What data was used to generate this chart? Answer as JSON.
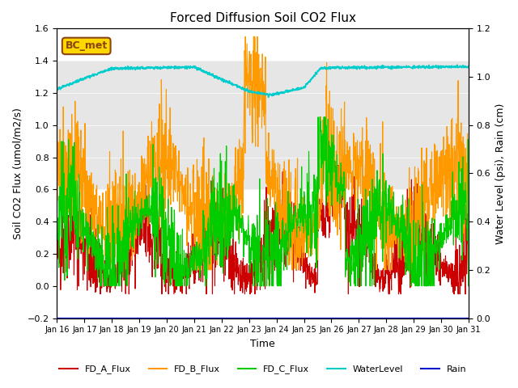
{
  "title": "Forced Diffusion Soil CO2 Flux",
  "xlabel": "Time",
  "ylabel_left": "Soil CO2 Flux (umol/m2/s)",
  "ylabel_right": "Water Level (psi), Rain (cm)",
  "ylim_left": [
    -0.2,
    1.6
  ],
  "ylim_right": [
    0.0,
    1.2
  ],
  "xlim": [
    0,
    15
  ],
  "xtick_labels": [
    "Jan 16",
    "Jan 17",
    "Jan 18",
    "Jan 19",
    "Jan 20",
    "Jan 21",
    "Jan 22",
    "Jan 23",
    "Jan 24",
    "Jan 25",
    "Jan 26",
    "Jan 27",
    "Jan 28",
    "Jan 29",
    "Jan 30",
    "Jan 31"
  ],
  "shaded_region": [
    0.6,
    1.4
  ],
  "bc_met_label": "BC_met",
  "colors": {
    "FD_A": "#cc0000",
    "FD_B": "#ff9900",
    "FD_C": "#00cc00",
    "WaterLevel": "#00cccc",
    "Rain": "#0000cc",
    "shade": "#e0e0e0"
  },
  "legend_labels": [
    "FD_A_Flux",
    "FD_B_Flux",
    "FD_C_Flux",
    "WaterLevel",
    "Rain"
  ]
}
